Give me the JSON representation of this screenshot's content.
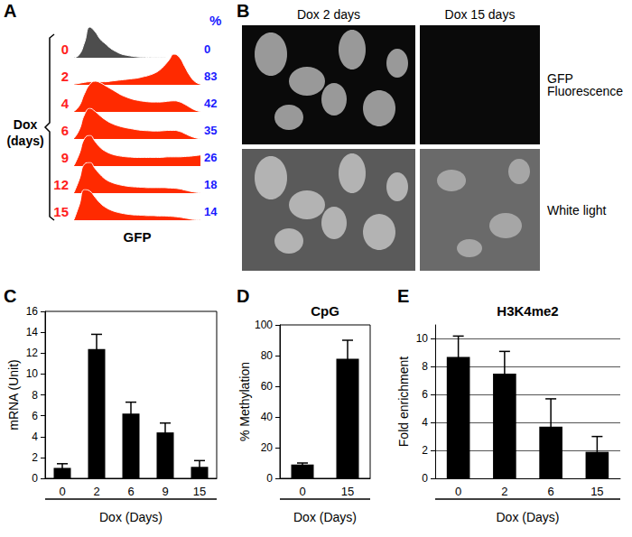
{
  "panel_labels": [
    "A",
    "B",
    "C",
    "D",
    "E"
  ],
  "chart_data": [
    {
      "type": "area",
      "xlabel": "GFP",
      "ylabel": [
        "Dox",
        "(days)"
      ],
      "percent_header": "%",
      "tick_labels": false,
      "series": [
        {
          "name": "0",
          "color": "#4d4d4d",
          "percent": 0,
          "values": [
            0,
            0.1,
            0.5,
            1,
            0.85,
            0.6,
            0.45,
            0.3,
            0.2,
            0.12,
            0.08,
            0.05,
            0.03,
            0.02,
            0.015,
            0.01,
            0.01,
            0.01,
            0,
            0,
            0,
            0,
            0,
            0,
            0
          ]
        },
        {
          "name": "2",
          "color": "#ff2a00",
          "percent": 83,
          "values": [
            0.02,
            0.05,
            0.08,
            0.1,
            0.1,
            0.1,
            0.1,
            0.12,
            0.14,
            0.16,
            0.18,
            0.2,
            0.22,
            0.26,
            0.3,
            0.36,
            0.45,
            0.6,
            0.8,
            1,
            0.9,
            0.6,
            0.3,
            0.1,
            0.02
          ]
        },
        {
          "name": "4",
          "color": "#ff2a00",
          "percent": 42,
          "values": [
            0.02,
            0.2,
            0.6,
            0.9,
            1,
            0.95,
            0.85,
            0.75,
            0.65,
            0.55,
            0.48,
            0.42,
            0.38,
            0.35,
            0.33,
            0.32,
            0.32,
            0.33,
            0.35,
            0.36,
            0.33,
            0.25,
            0.15,
            0.06,
            0.01
          ]
        },
        {
          "name": "6",
          "color": "#ff2a00",
          "percent": 35,
          "values": [
            0.02,
            0.3,
            0.8,
            1,
            0.9,
            0.75,
            0.62,
            0.52,
            0.45,
            0.4,
            0.36,
            0.33,
            0.3,
            0.28,
            0.27,
            0.26,
            0.26,
            0.27,
            0.28,
            0.28,
            0.25,
            0.18,
            0.1,
            0.04,
            0.01
          ]
        },
        {
          "name": "9",
          "color": "#ff2a00",
          "percent": 26,
          "values": [
            0.02,
            0.4,
            0.9,
            1,
            0.8,
            0.6,
            0.48,
            0.4,
            0.35,
            0.32,
            0.3,
            0.29,
            0.28,
            0.28,
            0.28,
            0.28,
            0.28,
            0.29,
            0.3,
            0.3,
            0.3,
            0.31,
            0.32,
            0.34,
            0.36
          ]
        },
        {
          "name": "12",
          "color": "#ff2a00",
          "percent": 18,
          "values": [
            0.02,
            0.45,
            0.95,
            1,
            0.8,
            0.6,
            0.45,
            0.36,
            0.3,
            0.26,
            0.23,
            0.21,
            0.2,
            0.19,
            0.18,
            0.18,
            0.18,
            0.18,
            0.17,
            0.16,
            0.14,
            0.1,
            0.06,
            0.03,
            0.01
          ]
        },
        {
          "name": "15",
          "color": "#ff2a00",
          "percent": 14,
          "values": [
            0.02,
            0.5,
            1,
            0.95,
            0.75,
            0.55,
            0.42,
            0.33,
            0.27,
            0.23,
            0.2,
            0.18,
            0.17,
            0.16,
            0.15,
            0.15,
            0.14,
            0.14,
            0.13,
            0.12,
            0.1,
            0.07,
            0.04,
            0.02,
            0.01
          ]
        }
      ]
    },
    {
      "type": "bar",
      "ylabel": "mRNA (Unit)",
      "xlabel": "Dox (Days)",
      "categories": [
        "0",
        "2",
        "6",
        "9",
        "15"
      ],
      "values": [
        1.0,
        12.4,
        6.2,
        4.4,
        1.1
      ],
      "errors": [
        0.4,
        1.4,
        1.1,
        0.9,
        0.6
      ],
      "color": "#000000",
      "ylim": [
        0,
        16
      ],
      "yticks": [
        0,
        2,
        4,
        6,
        8,
        10,
        12,
        14,
        16
      ],
      "grid": false
    },
    {
      "type": "bar",
      "title": "CpG",
      "ylabel": "% Methylation",
      "categories": [
        "0",
        "15"
      ],
      "xlabel": "Dox (Days)",
      "values": [
        9,
        78
      ],
      "errors": [
        1,
        12
      ],
      "color": "#000000",
      "ylim": [
        0,
        100
      ],
      "yticks": [
        0,
        20,
        40,
        60,
        80,
        100
      ],
      "grid": false
    },
    {
      "type": "bar",
      "title": "H3K4me2",
      "ylabel": "Fold enrichment",
      "xlabel": "Dox (Days)",
      "categories": [
        "0",
        "2",
        "6",
        "15"
      ],
      "values": [
        8.7,
        7.5,
        3.7,
        1.9
      ],
      "errors": [
        1.5,
        1.6,
        2.0,
        1.1
      ],
      "color": "#000000",
      "ylim": [
        0,
        11
      ],
      "yticks": [
        0,
        2,
        4,
        6,
        8,
        10
      ],
      "grid": true
    }
  ],
  "images": {
    "columns": [
      "Dox 2 days",
      "Dox 15 days"
    ],
    "rows": [
      "GFP Fluorescence",
      "White light"
    ]
  }
}
